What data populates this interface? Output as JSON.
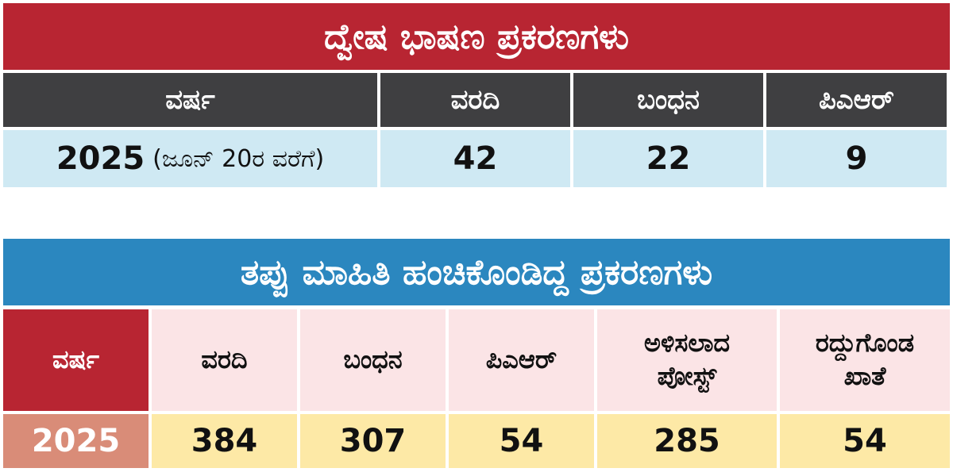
{
  "hate_speech": {
    "title": "ದ್ವೇಷ ಭಾಷಣ ಪ್ರಕರಣಗಳು",
    "headers": {
      "year": "ವರ್ಷ",
      "reports": "ವರದಿ",
      "arrests": "ಬಂಧನ",
      "pr": "ಪಿಎಆರ್"
    },
    "row": {
      "year": "2025",
      "year_note": "(ಜೂನ್ 20ರ ವರೆಗೆ)",
      "reports": "42",
      "arrests": "22",
      "pr": "9"
    }
  },
  "misinformation": {
    "title": "ತಪ್ಪು ಮಾಹಿತಿ ಹಂಚಿಕೊಂಡಿದ್ದ ಪ್ರಕರಣಗಳು",
    "headers": {
      "year": "ವರ್ಷ",
      "reports": "ವರದಿ",
      "arrests": "ಬಂಧನ",
      "pr": "ಪಿಎಆರ್",
      "deleted_posts_line1": "ಅಳಿಸಲಾದ",
      "deleted_posts_line2": "ಪೋಸ್ಟ್",
      "cancelled_accounts_line1": "ರದ್ದುಗೊಂಡ",
      "cancelled_accounts_line2": "ಖಾತೆ"
    },
    "row": {
      "year": "2025",
      "reports": "384",
      "arrests": "307",
      "pr": "54",
      "deleted_posts": "285",
      "cancelled_accounts": "54"
    }
  }
}
